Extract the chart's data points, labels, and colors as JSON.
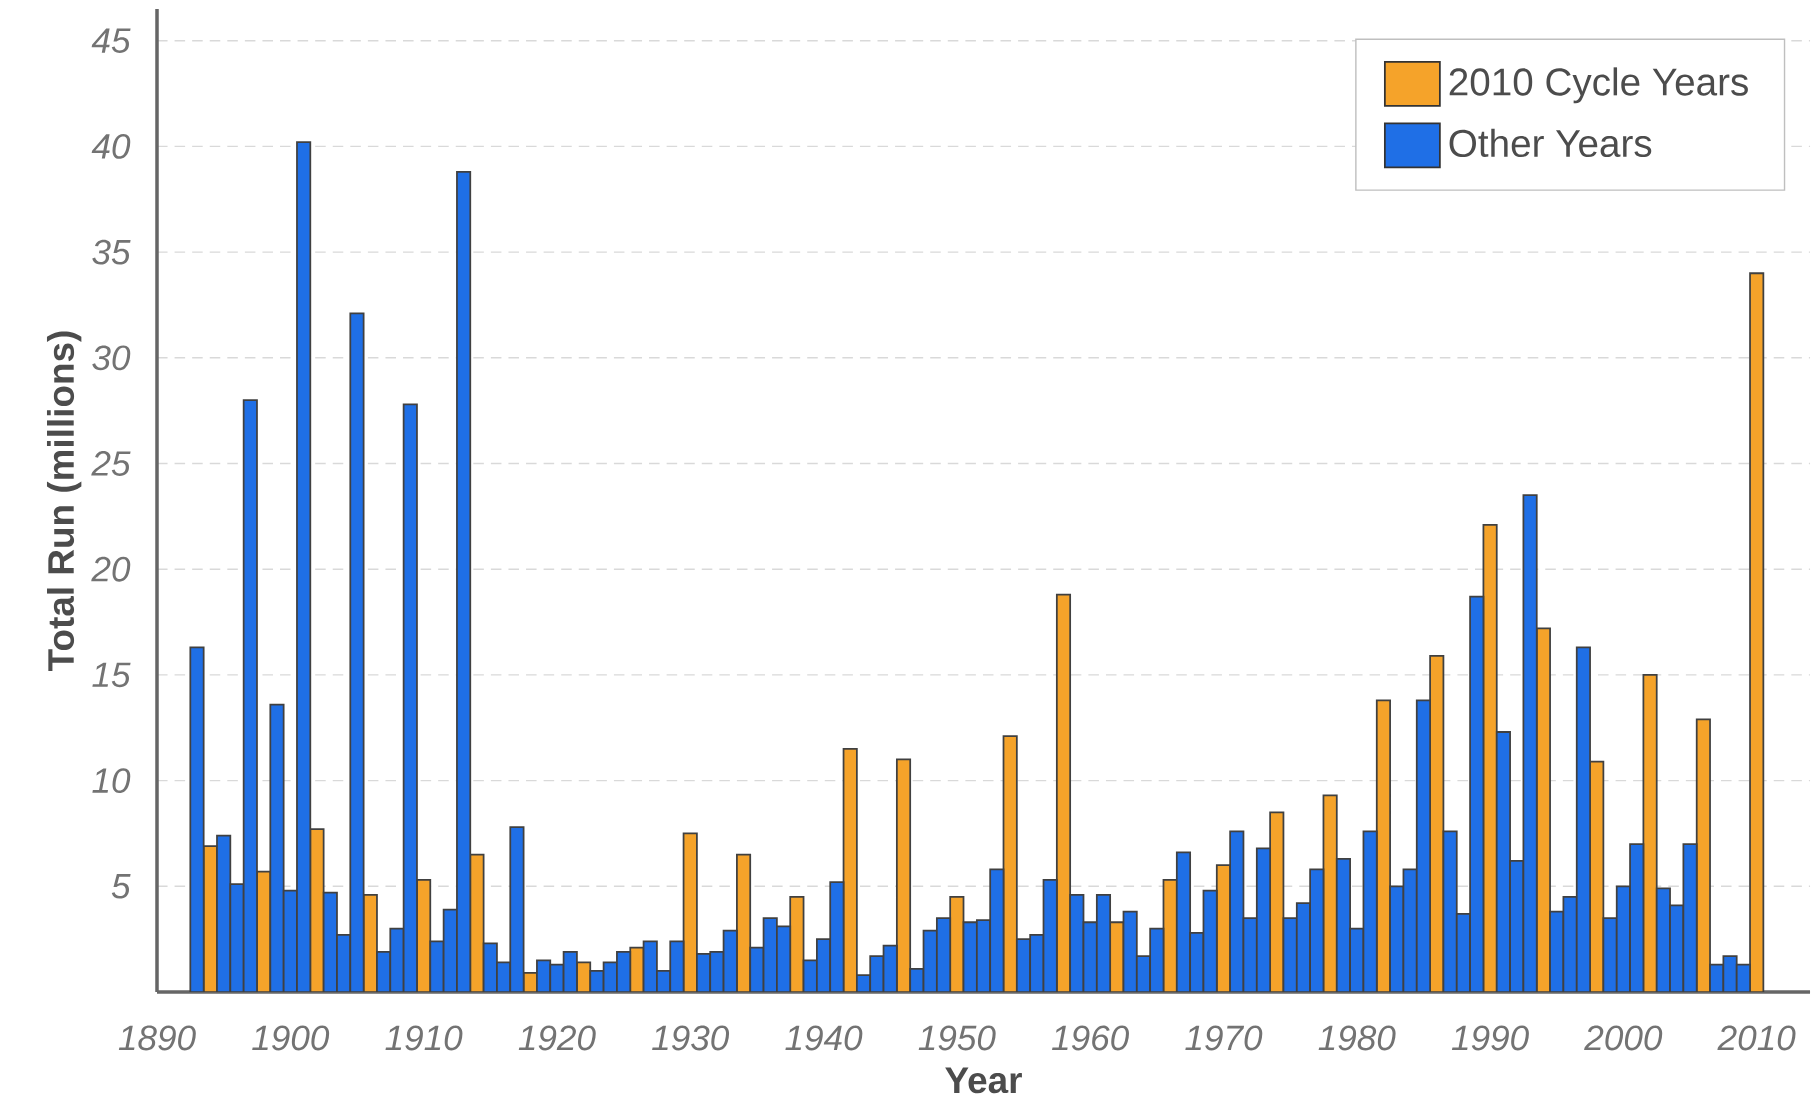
{
  "chart_data": {
    "type": "bar",
    "xlabel": "Year",
    "ylabel": "Total Run (millions)",
    "xlim": [
      1890,
      2014
    ],
    "xticks": [
      1890,
      1900,
      1910,
      1920,
      1930,
      1940,
      1950,
      1960,
      1970,
      1980,
      1990,
      2000,
      2010
    ],
    "ylim": [
      0,
      46.5
    ],
    "yticks": [
      5,
      10,
      15,
      20,
      25,
      30,
      35,
      40,
      45
    ],
    "grid": "y",
    "legend": "top right",
    "series": [
      {
        "name": "2010 Cycle Years",
        "color": "#f5a32a",
        "x": [
          1894,
          1898,
          1902,
          1906,
          1910,
          1914,
          1918,
          1922,
          1926,
          1930,
          1934,
          1938,
          1942,
          1946,
          1950,
          1954,
          1958,
          1962,
          1966,
          1970,
          1974,
          1978,
          1982,
          1986,
          1990,
          1994,
          1998,
          2002,
          2006,
          2010
        ],
        "values": [
          6.9,
          5.7,
          7.7,
          4.6,
          5.3,
          6.5,
          0.9,
          1.4,
          2.1,
          7.5,
          6.5,
          4.5,
          11.5,
          11.0,
          4.5,
          12.1,
          18.8,
          3.3,
          5.3,
          6.0,
          8.5,
          9.3,
          13.8,
          15.9,
          22.1,
          17.2,
          10.9,
          15.0,
          12.9,
          34.0
        ]
      },
      {
        "name": "Other Years",
        "color": "#1f6fe6",
        "x": [
          1893,
          1895,
          1896,
          1897,
          1899,
          1900,
          1901,
          1903,
          1904,
          1905,
          1907,
          1908,
          1909,
          1911,
          1912,
          1913,
          1915,
          1916,
          1917,
          1919,
          1920,
          1921,
          1923,
          1924,
          1925,
          1927,
          1928,
          1929,
          1931,
          1932,
          1933,
          1935,
          1936,
          1937,
          1939,
          1940,
          1941,
          1943,
          1944,
          1945,
          1947,
          1948,
          1949,
          1951,
          1952,
          1953,
          1955,
          1956,
          1957,
          1959,
          1960,
          1961,
          1963,
          1964,
          1965,
          1967,
          1968,
          1969,
          1971,
          1972,
          1973,
          1975,
          1976,
          1977,
          1979,
          1980,
          1981,
          1983,
          1984,
          1985,
          1987,
          1988,
          1989,
          1991,
          1992,
          1993,
          1995,
          1996,
          1997,
          1999,
          2000,
          2001,
          2003,
          2004,
          2005,
          2007,
          2008,
          2009
        ],
        "values": [
          16.3,
          7.4,
          5.1,
          28.0,
          13.6,
          4.8,
          40.2,
          4.7,
          2.7,
          32.1,
          1.9,
          3.0,
          27.8,
          2.4,
          3.9,
          38.8,
          2.3,
          1.4,
          7.8,
          1.5,
          1.3,
          1.9,
          1.0,
          1.4,
          1.9,
          2.4,
          1.0,
          2.4,
          1.8,
          1.9,
          2.9,
          2.1,
          3.5,
          3.1,
          1.5,
          2.5,
          5.2,
          0.8,
          1.7,
          2.2,
          1.1,
          2.9,
          3.5,
          3.3,
          3.4,
          5.8,
          2.5,
          2.7,
          5.3,
          4.6,
          3.3,
          4.6,
          3.8,
          1.7,
          3.0,
          6.6,
          2.8,
          4.8,
          7.6,
          3.5,
          6.8,
          3.5,
          4.2,
          5.8,
          6.3,
          3.0,
          7.6,
          5.0,
          5.8,
          13.8,
          7.6,
          3.7,
          18.7,
          12.3,
          6.2,
          23.5,
          3.8,
          4.5,
          16.3,
          3.5,
          5.0,
          7.0,
          4.9,
          4.1,
          7.0,
          1.3,
          1.7,
          1.3
        ]
      }
    ]
  }
}
